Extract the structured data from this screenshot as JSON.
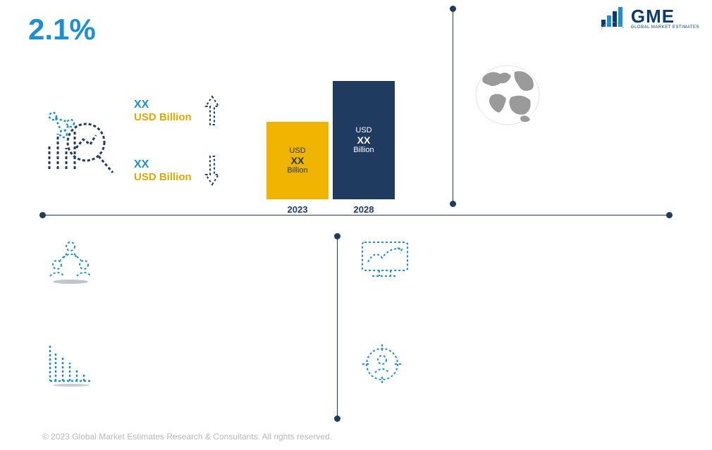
{
  "cagr": "2.1%",
  "logo": {
    "text": "GME",
    "color": "#0b3b6d"
  },
  "stats": {
    "up": {
      "xx": "XX",
      "unit": "USD Billion"
    },
    "down": {
      "xx": "XX",
      "unit": "USD Billion"
    }
  },
  "bars": {
    "type": "bar",
    "items": [
      {
        "year": "2023",
        "unit_top": "USD",
        "value": "XX",
        "unit_bot": "Billion",
        "height": 110,
        "bg": "#f0b400",
        "text_color": "#1f3b60"
      },
      {
        "year": "2028",
        "unit_top": "USD",
        "value": "XX",
        "unit_bot": "Billion",
        "height": 168,
        "bg": "#1f3b60",
        "text_color": "#ffffff"
      }
    ],
    "label_color": "#1f3b60"
  },
  "colors": {
    "accent": "#1a8fd6",
    "gold": "#f0b400",
    "navy": "#1f3b60",
    "gray": "#9a9a9a"
  },
  "copyright": "© 2023 Global Market Estimates Research & Consultants. All rights reserved."
}
